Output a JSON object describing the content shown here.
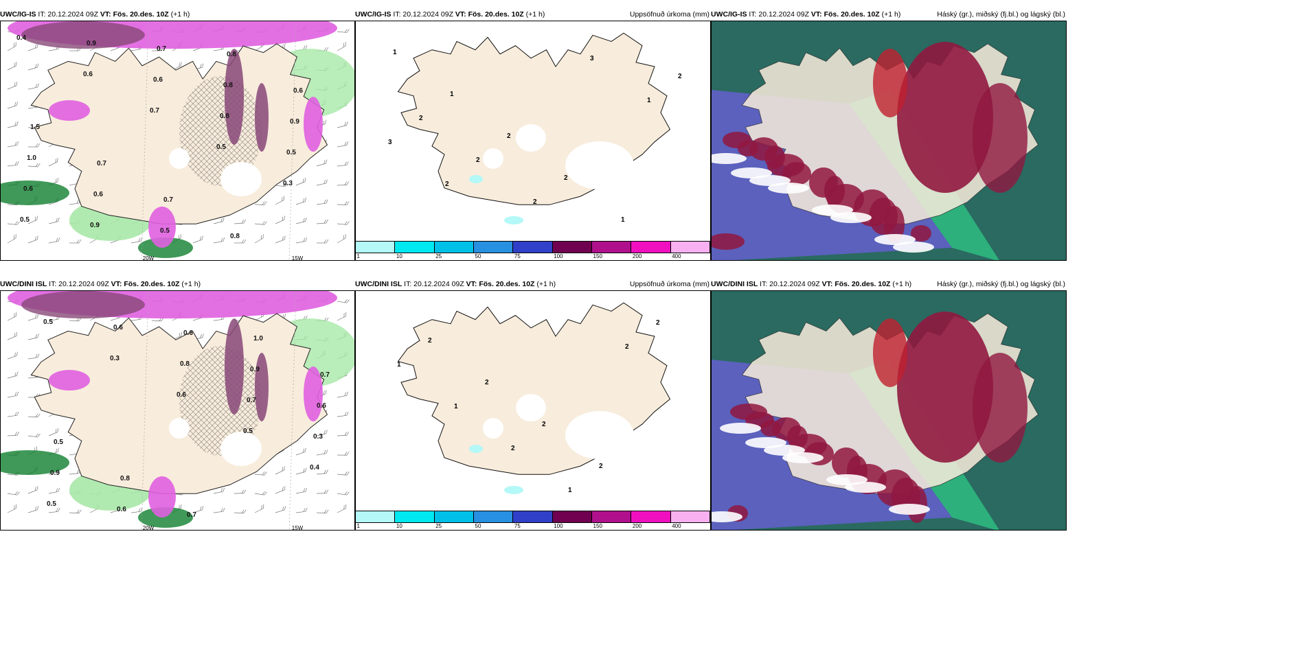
{
  "panels": [
    {
      "id": "igis-cloud",
      "model": "UWC/IG-IS",
      "it": "IT: 20.12.2024 09Z",
      "vt_label": "VT:",
      "vt": "Fös. 20.des. 10Z",
      "lead": "(+1 h)",
      "title_right": "",
      "labels": [
        "0.4",
        "0.6",
        "0.7",
        "0.5",
        "0.3",
        "0.5",
        "0.9",
        "0.6",
        "0.8",
        "0.5",
        "0.6",
        "0.9",
        "0.7",
        "0.8",
        "0.9",
        "1.0",
        "0.6",
        "0.5",
        "0.8",
        "0.6",
        "1.5",
        "0.7",
        "0.7",
        "0.8"
      ],
      "lon_labels": [
        "20W",
        "15W"
      ]
    },
    {
      "id": "igis-precip",
      "model": "UWC/IG-IS",
      "it": "IT: 20.12.2024 09Z",
      "vt_label": "VT:",
      "vt": "Fös. 20.des. 10Z",
      "lead": "(+1 h)",
      "title_right": "Uppsöfnuð úrkoma (mm)",
      "labels": [
        "1",
        "1",
        "2",
        "2",
        "1",
        "2",
        "2",
        "2",
        "2",
        "3",
        "1",
        "3",
        "2"
      ]
    },
    {
      "id": "igis-layers",
      "model": "UWC/IG-IS",
      "it": "IT: 20.12.2024 09Z",
      "vt_label": "VT:",
      "vt": "Fös. 20.des. 10Z",
      "lead": "(+1 h)",
      "title_right": "Háský (gr.), miðský (fj.bl.) og lágský (bl.)"
    },
    {
      "id": "dini-cloud",
      "model": "UWC/DINI ISL",
      "it": "IT: 20.12.2024 09Z",
      "vt_label": "VT:",
      "vt": "Fös. 20.des. 10Z",
      "lead": "(+1 h)",
      "title_right": "",
      "labels": [
        "0.5",
        "0.3",
        "0.6",
        "0.5",
        "0.4",
        "0.5",
        "0.6",
        "0.8",
        "0.7",
        "0.3",
        "0.9",
        "0.6",
        "0.6",
        "0.9",
        "0.6",
        "0.5",
        "0.8",
        "0.7",
        "1.0",
        "0.7"
      ],
      "lon_labels": [
        "20W",
        "15W"
      ]
    },
    {
      "id": "dini-precip",
      "model": "UWC/DINI ISL",
      "it": "IT: 20.12.2024 09Z",
      "vt_label": "VT:",
      "vt": "Fös. 20.des. 10Z",
      "lead": "(+1 h)",
      "title_right": "Uppsöfnuð úrkoma (mm)",
      "labels": [
        "2",
        "2",
        "2",
        "2",
        "2",
        "1",
        "1",
        "2",
        "1",
        "2"
      ]
    },
    {
      "id": "dini-layers",
      "model": "UWC/DINI ISL",
      "it": "IT: 20.12.2024 09Z",
      "vt_label": "VT:",
      "vt": "Fös. 20.des. 10Z",
      "lead": "(+1 h)",
      "title_right": "Háský (gr.), miðský (fj.bl.) og lágský (bl.)"
    }
  ],
  "colorbar": {
    "levels": [
      "1",
      "10",
      "25",
      "50",
      "75",
      "100",
      "150",
      "200",
      "400"
    ],
    "colors": [
      "#b4f8f8",
      "#00e8f0",
      "#00c0e8",
      "#2890e0",
      "#3040c8",
      "#700050",
      "#b0108c",
      "#f010c0",
      "#f8b0f0"
    ]
  },
  "colors": {
    "land": "#f8ecdc",
    "sea": "#ffffff",
    "snow": "#ffffff",
    "cloud_pink": "#e060e0",
    "cloud_purple": "#884878",
    "cloud_green": "#a8e8a8",
    "cloud_dkgreen": "#108030",
    "high": "#2a6a60",
    "mid": "#6060c8",
    "low": "#901840",
    "edge": "#30e090"
  }
}
